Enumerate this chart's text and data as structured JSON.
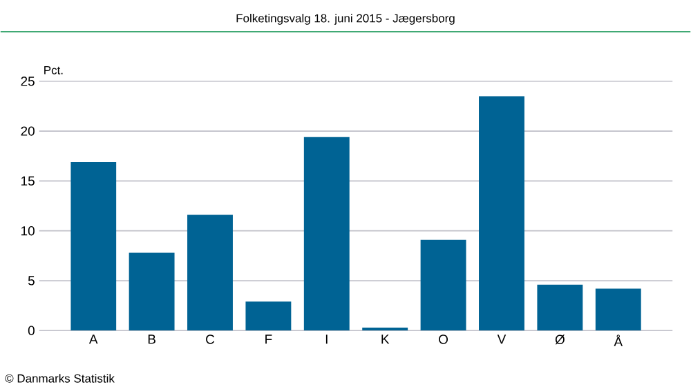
{
  "chart_data": {
    "type": "bar",
    "title": "Folketingsvalg 18. juni 2015 - Jægersborg",
    "ylabel": "Pct.",
    "categories": [
      "A",
      "B",
      "C",
      "F",
      "I",
      "K",
      "O",
      "V",
      "Ø",
      "Å"
    ],
    "values": [
      16.9,
      7.8,
      11.6,
      2.9,
      19.4,
      0.3,
      9.1,
      23.5,
      4.6,
      4.2
    ],
    "color": "#006394",
    "ylim": [
      0,
      25
    ],
    "yticks": [
      0,
      5,
      10,
      15,
      20,
      25
    ],
    "grid": "y",
    "annotations": [
      "© Danmarks Statistik"
    ]
  }
}
